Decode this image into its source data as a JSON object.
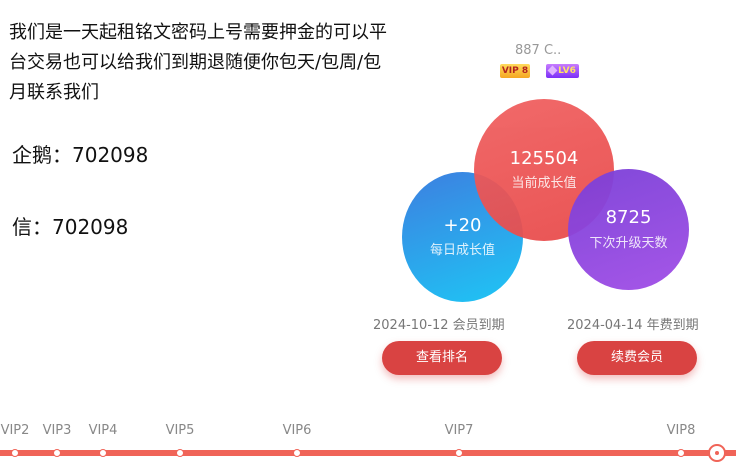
{
  "promo": {
    "text": "我们是一天起租铭文密码上号需要押金的可以平台交易也可以给我们到期退随便你包天/包周/包月联系我们",
    "qq": "企鹅：702098",
    "wechat": "信：702098"
  },
  "user": {
    "id_partial": "887 C..",
    "vip_badge": "VIP 8",
    "level_badge": "LV6"
  },
  "stats": {
    "daily": {
      "value": "+20",
      "label": "每日成长值"
    },
    "growth": {
      "value": "125504",
      "label": "当前成长值"
    },
    "next": {
      "value": "8725",
      "label": "下次升级天数"
    }
  },
  "expiry": {
    "member": "2024-10-12 会员到期",
    "year": "2024-04-14 年费到期"
  },
  "buttons": {
    "rank": "查看排名",
    "renew": "续费会员"
  },
  "vip_track": {
    "levels": [
      {
        "label": "VIP2"
      },
      {
        "label": "VIP3"
      },
      {
        "label": "VIP4"
      },
      {
        "label": "VIP5"
      },
      {
        "label": "VIP6"
      },
      {
        "label": "VIP7"
      },
      {
        "label": "VIP8"
      }
    ],
    "current_level": "VIP8"
  },
  "colors": {
    "accent_red": "#d94342",
    "track": "#f06458",
    "circle_blue": "#1ec6f5",
    "circle_red": "#e84a4a",
    "circle_purple": "#a14de6"
  }
}
